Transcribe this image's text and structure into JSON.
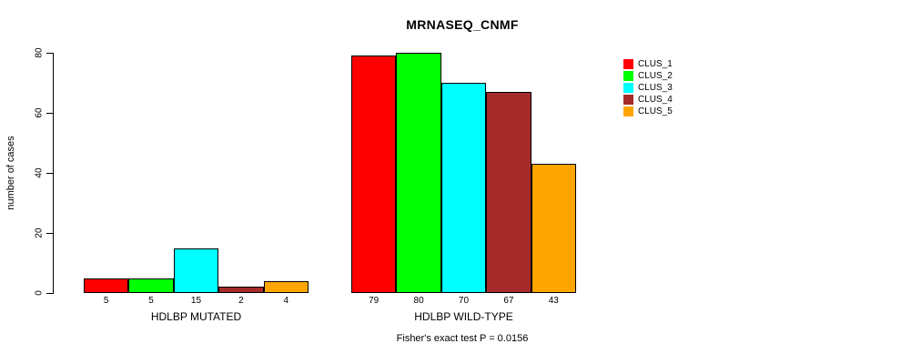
{
  "chart_data": {
    "type": "bar",
    "title": "MRNASEQ_CNMF",
    "ylabel": "number of cases",
    "xlabel": "",
    "annotation": "Fisher's exact test P = 0.0156",
    "ylim": [
      0,
      80
    ],
    "yticks": [
      0,
      20,
      40,
      60,
      80
    ],
    "grid": false,
    "legend_position": "right",
    "categories": [
      "HDLBP MUTATED",
      "HDLBP WILD-TYPE"
    ],
    "series": [
      {
        "name": "CLUS_1",
        "color": "#FF0000",
        "values": [
          5,
          79
        ]
      },
      {
        "name": "CLUS_2",
        "color": "#00FF00",
        "values": [
          5,
          80
        ]
      },
      {
        "name": "CLUS_3",
        "color": "#00FFFF",
        "values": [
          15,
          70
        ]
      },
      {
        "name": "CLUS_4",
        "color": "#A52A2A",
        "values": [
          2,
          67
        ]
      },
      {
        "name": "CLUS_5",
        "color": "#FFA500",
        "values": [
          4,
          43
        ]
      }
    ]
  }
}
